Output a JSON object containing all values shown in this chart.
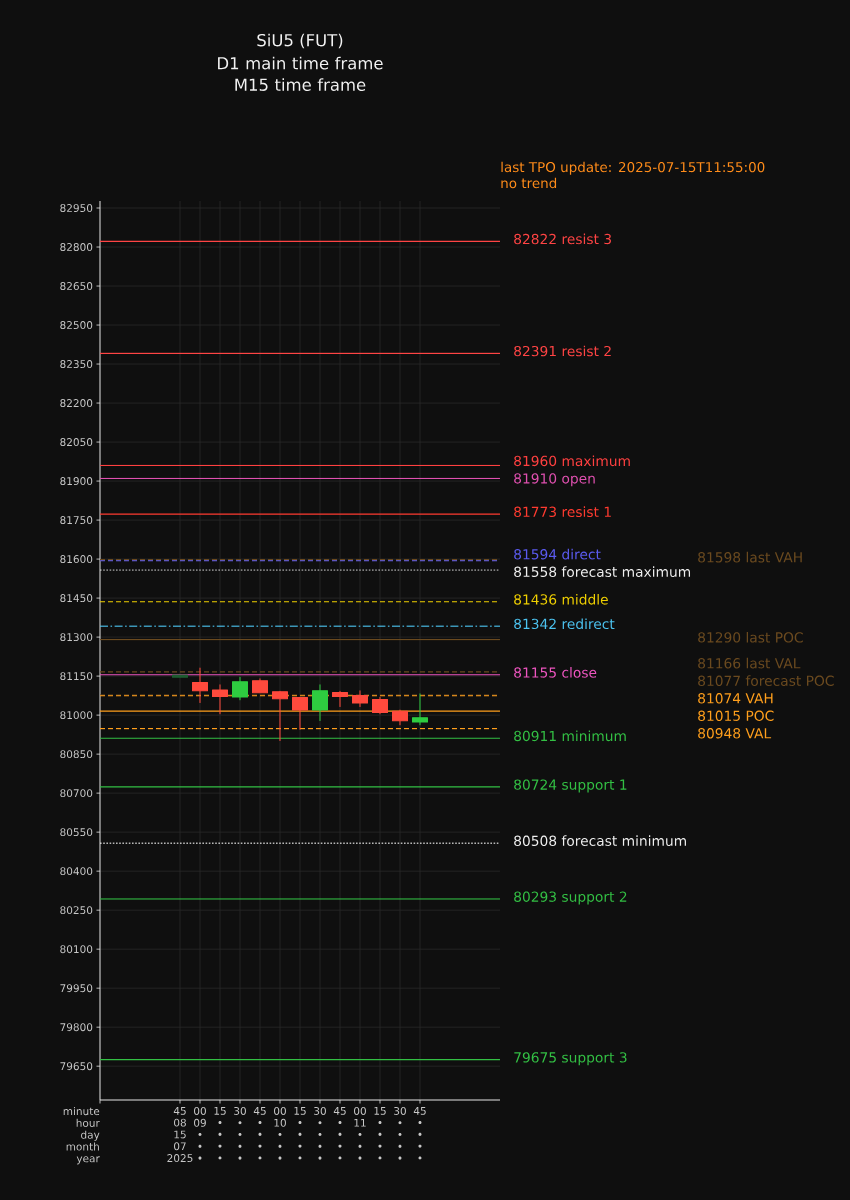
{
  "chart_data": {
    "type": "candlestick",
    "title": "SiU5 (FUT)",
    "subtitle": "D1 main time frame M15 time frame",
    "xlabel": "minute hour day month year",
    "x": [
      "2025-07-15T08:45",
      "2025-07-15T09:00",
      "2025-07-15T09:15",
      "2025-07-15T09:30",
      "2025-07-15T09:45",
      "2025-07-15T10:00",
      "2025-07-15T10:15",
      "2025-07-15T10:30",
      "2025-07-15T10:45",
      "2025-07-15T11:00",
      "2025-07-15T11:15",
      "2025-07-15T11:30",
      "2025-07-15T11:45"
    ],
    "ohlc": [
      [
        81146,
        81154,
        81146,
        81154
      ],
      [
        81125,
        81181,
        81049,
        81094
      ],
      [
        81097,
        81117,
        81005,
        81072
      ],
      [
        81070,
        81146,
        81059,
        81128
      ],
      [
        81132,
        81140,
        81086,
        81086
      ],
      [
        81090,
        81092,
        80902,
        81063
      ],
      [
        81068,
        81068,
        80946,
        81020
      ],
      [
        81020,
        81117,
        80979,
        81094
      ],
      [
        81087,
        81092,
        81033,
        81072
      ],
      [
        81075,
        81094,
        81033,
        81047
      ],
      [
        81060,
        81069,
        81005,
        81010
      ],
      [
        81015,
        81020,
        80963,
        80978
      ],
      [
        80974,
        81082,
        80963,
        80990
      ]
    ],
    "colors": [
      "#1e5c30",
      "#ff4a3d",
      "#ff4a3d",
      "#2ecc40",
      "#ff4a3d",
      "#ff4a3d",
      "#ff4a3d",
      "#2ecc40",
      "#ff4a3d",
      "#ff4a3d",
      "#ff4a3d",
      "#ff4a3d",
      "#2ecc40"
    ],
    "xlim": [
      "2025-07-15T07:45",
      "2025-07-15T12:45"
    ],
    "xticks": [
      {
        "value": "2025-07-15T08:45",
        "label": "45 08 15 07 2025"
      },
      {
        "value": "2025-07-15T09:00",
        "label": "00 09 • • •"
      },
      {
        "value": "2025-07-15T09:15",
        "label": "15 • • • •"
      },
      {
        "value": "2025-07-15T09:30",
        "label": "30 • • • •"
      },
      {
        "value": "2025-07-15T09:45",
        "label": "45 • • • •"
      },
      {
        "value": "2025-07-15T10:00",
        "label": "00 10 • • •"
      },
      {
        "value": "2025-07-15T10:15",
        "label": "15 • • • •"
      },
      {
        "value": "2025-07-15T10:30",
        "label": "30 • • • •"
      },
      {
        "value": "2025-07-15T10:45",
        "label": "45 • • • •"
      },
      {
        "value": "2025-07-15T11:00",
        "label": "00 11 • • •"
      },
      {
        "value": "2025-07-15T11:15",
        "label": "15 • • • •"
      },
      {
        "value": "2025-07-15T11:30",
        "label": "30 • • • •"
      },
      {
        "value": "2025-07-15T11:45",
        "label": "45 • • • •"
      }
    ],
    "ylim": [
      79520,
      82977
    ],
    "yticks": [
      79650,
      79800,
      79950,
      80100,
      80250,
      80400,
      80550,
      80700,
      80850,
      81000,
      81150,
      81300,
      81450,
      81600,
      81750,
      81900,
      82050,
      82200,
      82350,
      82500,
      82650,
      82800,
      82950
    ],
    "grid": true,
    "ref_lines": [
      {
        "axis": "y",
        "value": 82822,
        "label": "82822 resist 3",
        "color": "#ff4444",
        "line_style": "solid"
      },
      {
        "axis": "y",
        "value": 82391,
        "label": "82391 resist 2",
        "color": "#ff4444",
        "line_style": "solid"
      },
      {
        "axis": "y",
        "value": 81960,
        "label": "81960 maximum",
        "color": "#ff4040",
        "line_style": "solid"
      },
      {
        "axis": "y",
        "value": 81910,
        "label": "81910 open",
        "color": "#e050b0",
        "line_style": "solid"
      },
      {
        "axis": "y",
        "value": 81773,
        "label": "81773 resist 1",
        "color": "#ff3b30",
        "line_style": "solid"
      },
      {
        "axis": "y",
        "value": 81594,
        "label": "81594 direct",
        "color": "#5b5bf0",
        "line_style": "dashed"
      },
      {
        "axis": "y",
        "value": 81558,
        "label": "81558 forecast maximum",
        "color": "#f0f0f0",
        "line_style": "dotted"
      },
      {
        "axis": "y",
        "value": 81436,
        "label": "81436 middle",
        "color": "#f0d000",
        "line_style": "dashed"
      },
      {
        "axis": "y",
        "value": 81342,
        "label": "81342 redirect",
        "color": "#4cc3f0",
        "line_style": "dashdot"
      },
      {
        "axis": "y",
        "value": 81155,
        "label": "81155 close",
        "color": "#ee55c0",
        "line_style": "solid"
      },
      {
        "axis": "y",
        "value": 80911,
        "label": "80911 minimum",
        "color": "#33c044",
        "line_style": "solid"
      },
      {
        "axis": "y",
        "value": 80724,
        "label": "80724 support 1",
        "color": "#33c044",
        "line_style": "solid"
      },
      {
        "axis": "y",
        "value": 80508,
        "label": "80508 forecast minimum",
        "color": "#f0f0f0",
        "line_style": "dotted"
      },
      {
        "axis": "y",
        "value": 80293,
        "label": "80293 support 2",
        "color": "#33c044",
        "line_style": "solid"
      },
      {
        "axis": "y",
        "value": 79675,
        "label": "79675 support 3",
        "color": "#33c044",
        "line_style": "solid"
      },
      {
        "axis": "y",
        "value": 81598,
        "label": "81598 last VAH",
        "color": "#6b4a1f",
        "line_style": "dashed"
      },
      {
        "axis": "y",
        "value": 81290,
        "label": "81290 last POC",
        "color": "#6b4a1f",
        "line_style": "solid"
      },
      {
        "axis": "y",
        "value": 81166,
        "label": "81166 last VAL",
        "color": "#6b4a1f",
        "line_style": "dashed"
      },
      {
        "axis": "y",
        "value": 81077,
        "label": "81077 forecast POC",
        "color": "#6b4a1f",
        "line_style": "dashed"
      },
      {
        "axis": "y",
        "value": 81074,
        "label": "81074 VAH",
        "color": "#ff9f1c",
        "line_style": "dashed"
      },
      {
        "axis": "y",
        "value": 81015,
        "label": "81015 POC",
        "color": "#ff9f1c",
        "line_style": "solid"
      },
      {
        "axis": "y",
        "value": 80948,
        "label": "80948 VAL",
        "color": "#ff9f1c",
        "line_style": "dashed"
      }
    ],
    "annotations": [
      "last TPO update: 2025-07-15T11:55:00",
      "no trend"
    ]
  }
}
